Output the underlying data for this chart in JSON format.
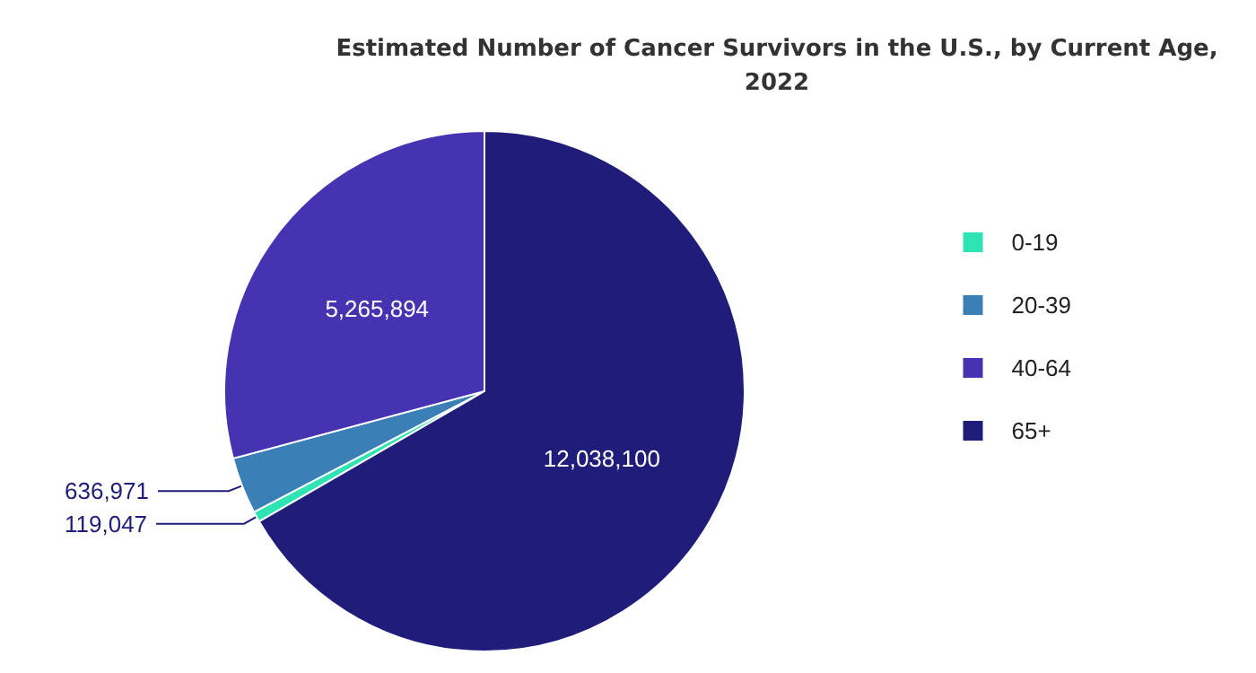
{
  "chart_data": {
    "type": "pie",
    "title": "Estimated Number of Cancer Survivors in the U.S., by Current Age,\n2022",
    "categories": [
      "0-19",
      "20-39",
      "40-64",
      "65+"
    ],
    "values": [
      119047,
      636971,
      5265894,
      12038100
    ],
    "colors": [
      "#2ee3b4",
      "#3a80b6",
      "#4533b2",
      "#1f1d79"
    ],
    "value_labels": [
      "119,047",
      "636,971",
      "5,265,894",
      "12,038,100"
    ],
    "legend": "right"
  }
}
